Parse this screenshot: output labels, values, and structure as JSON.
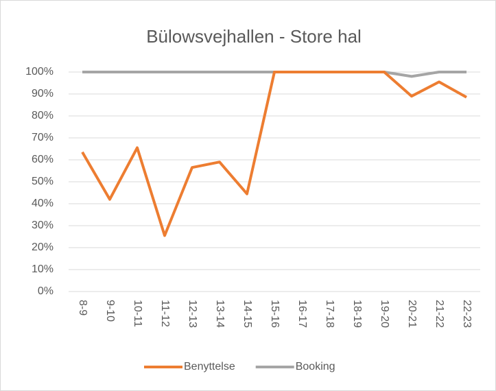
{
  "chart_data": {
    "type": "line",
    "title": "Bülowsvejhallen - Store hal",
    "categories": [
      "8-9",
      "9-10",
      "10-11",
      "11-12",
      "12-13",
      "13-14",
      "14-15",
      "15-16",
      "16-17",
      "17-18",
      "18-19",
      "19-20",
      "20-21",
      "21-22",
      "22-23"
    ],
    "series": [
      {
        "name": "Benyttelse",
        "color": "#ed7d31",
        "values": [
          63.5,
          42,
          65.5,
          25.5,
          56.5,
          59,
          44.5,
          100,
          100,
          100,
          100,
          100,
          89,
          95.5,
          88.5
        ]
      },
      {
        "name": "Booking",
        "color": "#a5a5a5",
        "values": [
          100,
          100,
          100,
          100,
          100,
          100,
          100,
          100,
          100,
          100,
          100,
          100,
          98,
          100,
          100
        ]
      }
    ],
    "ylim": [
      0,
      100
    ],
    "yticks": [
      {
        "value": 0,
        "label": "0%"
      },
      {
        "value": 10,
        "label": "10%"
      },
      {
        "value": 20,
        "label": "20%"
      },
      {
        "value": 30,
        "label": "30%"
      },
      {
        "value": 40,
        "label": "40%"
      },
      {
        "value": 50,
        "label": "50%"
      },
      {
        "value": 60,
        "label": "60%"
      },
      {
        "value": 70,
        "label": "70%"
      },
      {
        "value": 80,
        "label": "80%"
      },
      {
        "value": 90,
        "label": "90%"
      },
      {
        "value": 100,
        "label": "100%"
      }
    ],
    "grid": true,
    "legend": "bottom"
  }
}
